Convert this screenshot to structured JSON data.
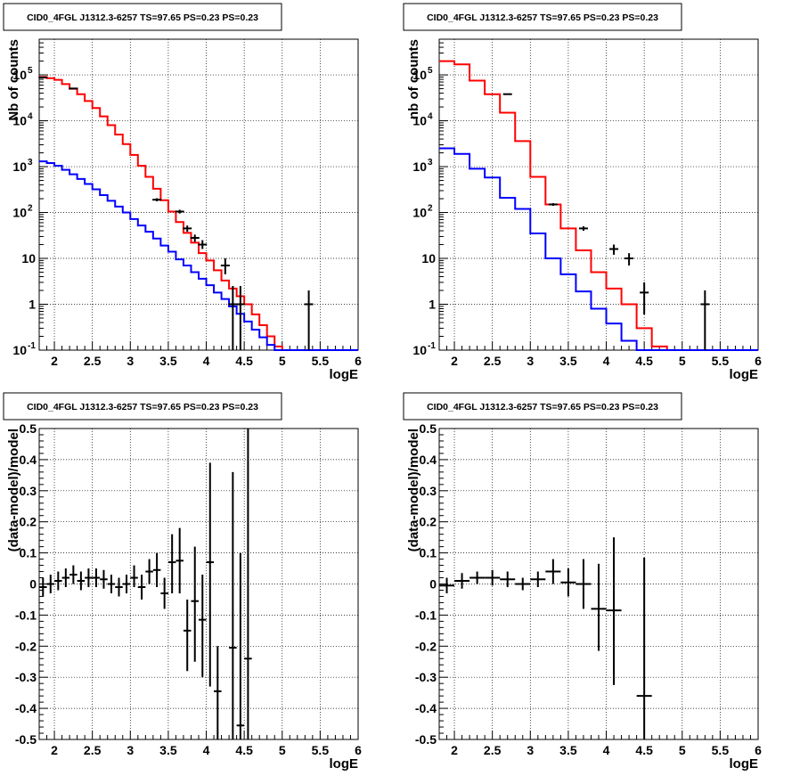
{
  "colors": {
    "data": "#000000",
    "model_total": "#ff0000",
    "model_component": "#0000ff",
    "grid": "#000000",
    "frame": "#000000"
  },
  "chart_data": [
    {
      "type": "line",
      "title": "CID0_4FGL J1312.3-6257 TS=97.65 PS=0.23 PS=0.23",
      "xlabel": "logE",
      "ylabel": "Nb of counts",
      "xlim": [
        1.8,
        6
      ],
      "ylim": [
        0.1,
        600000
      ],
      "log_y": true,
      "grid": true,
      "x_ticks": [
        "2",
        "2.5",
        "3",
        "3.5",
        "4",
        "4.5",
        "5",
        "5.5",
        "6"
      ],
      "y_ticks": [
        {
          "value": 0.1,
          "label": "10",
          "exp": "-1"
        },
        {
          "value": 1,
          "label": "1",
          "exp": ""
        },
        {
          "value": 10,
          "label": "10",
          "exp": ""
        },
        {
          "value": 100,
          "label": "10",
          "exp": "2"
        },
        {
          "value": 1000,
          "label": "10",
          "exp": "3"
        },
        {
          "value": 10000,
          "label": "10",
          "exp": "4"
        },
        {
          "value": 100000,
          "label": "10",
          "exp": "5"
        }
      ],
      "bin_edges": [
        1.8,
        1.9,
        2.0,
        2.1,
        2.2,
        2.3,
        2.4,
        2.5,
        2.6,
        2.7,
        2.8,
        2.9,
        3.0,
        3.1,
        3.2,
        3.3,
        3.4,
        3.5,
        3.6,
        3.7,
        3.8,
        3.9,
        4.0,
        4.1,
        4.2,
        4.3,
        4.4,
        4.5,
        4.6,
        4.7,
        4.8,
        4.9,
        5.0,
        5.1,
        5.2,
        5.3,
        5.4,
        5.5,
        5.6,
        5.7,
        5.8,
        5.9,
        6.0
      ],
      "series": [
        {
          "role": "model_total",
          "values": [
            90000,
            85000,
            78000,
            63000,
            50000,
            38000,
            27000,
            19000,
            12500,
            8000,
            5000,
            3100,
            1800,
            1050,
            600,
            330,
            185,
            105,
            62,
            36,
            22,
            13,
            9,
            5.5,
            3.3,
            2.2,
            1.5,
            1.0,
            0.6,
            0.35,
            0.2,
            0.12,
            0.1,
            0.1,
            0.1,
            0.1,
            0.1,
            0.1,
            0.1,
            0.1,
            0.1,
            0.1
          ]
        },
        {
          "role": "model_component",
          "values": [
            1300,
            1200,
            1050,
            850,
            680,
            540,
            420,
            320,
            240,
            180,
            135,
            100,
            72,
            52,
            38,
            27,
            19,
            14,
            9.5,
            7,
            5,
            3.6,
            2.6,
            1.8,
            1.3,
            0.9,
            0.62,
            0.42,
            0.28,
            0.19,
            0.13,
            0.1,
            0.1,
            0.1,
            0.1,
            0.1,
            0.1,
            0.1,
            0.1,
            0.1,
            0.1,
            0.1
          ]
        },
        {
          "role": "data",
          "points": [
            {
              "x": 1.85,
              "y": 88000,
              "lo": 87000,
              "hi": 89000
            },
            {
              "x": 2.25,
              "y": 50500,
              "lo": 50000,
              "hi": 51000
            },
            {
              "x": 3.35,
              "y": 190,
              "lo": 175,
              "hi": 205
            },
            {
              "x": 3.65,
              "y": 105,
              "lo": 95,
              "hi": 115
            },
            {
              "x": 3.75,
              "y": 45,
              "lo": 38,
              "hi": 52
            },
            {
              "x": 3.85,
              "y": 28,
              "lo": 23,
              "hi": 33
            },
            {
              "x": 3.95,
              "y": 20,
              "lo": 16,
              "hi": 25
            },
            {
              "x": 4.25,
              "y": 7,
              "lo": 4.5,
              "hi": 10
            },
            {
              "x": 4.35,
              "y": 1,
              "lo": 0.1,
              "hi": 2.5
            },
            {
              "x": 4.45,
              "y": 1,
              "lo": 0.1,
              "hi": 2.5
            },
            {
              "x": 5.35,
              "y": 1,
              "lo": 0.1,
              "hi": 2
            }
          ]
        }
      ]
    },
    {
      "type": "line",
      "title": "CID0_4FGL J1312.3-6257 TS=97.65 PS=0.23 PS=0.23",
      "xlabel": "logE",
      "ylabel": "nb of counts",
      "xlim": [
        1.8,
        6
      ],
      "ylim": [
        0.1,
        600000
      ],
      "log_y": true,
      "grid": true,
      "x_ticks": [
        "2",
        "2.5",
        "3",
        "3.5",
        "4",
        "4.5",
        "5",
        "5.5",
        "6"
      ],
      "y_ticks": [
        {
          "value": 0.1,
          "label": "10",
          "exp": "-1"
        },
        {
          "value": 1,
          "label": "1",
          "exp": ""
        },
        {
          "value": 10,
          "label": "10",
          "exp": ""
        },
        {
          "value": 100,
          "label": "10",
          "exp": "2"
        },
        {
          "value": 1000,
          "label": "10",
          "exp": "3"
        },
        {
          "value": 10000,
          "label": "10",
          "exp": "4"
        },
        {
          "value": 100000,
          "label": "10",
          "exp": "5"
        }
      ],
      "bin_edges": [
        1.8,
        2.0,
        2.2,
        2.4,
        2.6,
        2.8,
        3.0,
        3.2,
        3.4,
        3.6,
        3.8,
        4.0,
        4.2,
        4.4,
        4.6,
        4.8,
        5.0,
        5.2,
        5.4,
        5.6,
        5.8,
        6.0
      ],
      "series": [
        {
          "role": "model_total",
          "values": [
            200000,
            170000,
            75000,
            38000,
            15000,
            3600,
            600,
            150,
            45,
            15,
            5,
            2.2,
            1.0,
            0.3,
            0.12,
            0.1,
            0.1,
            0.1,
            0.1,
            0.1,
            0.1
          ]
        },
        {
          "role": "model_component",
          "values": [
            2500,
            1900,
            900,
            580,
            210,
            120,
            35,
            10,
            4.5,
            1.9,
            0.8,
            0.38,
            0.16,
            0.1,
            0.1,
            0.1,
            0.1,
            0.1,
            0.1,
            0.1,
            0.1
          ]
        },
        {
          "role": "data",
          "points": [
            {
              "x": 2.7,
              "y": 38000,
              "lo": 37000,
              "hi": 39000
            },
            {
              "x": 3.3,
              "y": 150,
              "lo": 140,
              "hi": 160
            },
            {
              "x": 3.7,
              "y": 45,
              "lo": 40,
              "hi": 50
            },
            {
              "x": 4.1,
              "y": 16,
              "lo": 12,
              "hi": 20
            },
            {
              "x": 4.3,
              "y": 10,
              "lo": 7,
              "hi": 13
            },
            {
              "x": 4.5,
              "y": 1.8,
              "lo": 0.6,
              "hi": 3
            },
            {
              "x": 5.3,
              "y": 1,
              "lo": 0.1,
              "hi": 2
            }
          ]
        }
      ]
    },
    {
      "type": "scatter",
      "title": "CID0_4FGL J1312.3-6257 TS=97.65 PS=0.23 PS=0.23",
      "xlabel": "logE",
      "ylabel": "(data-model)/model",
      "xlim": [
        1.8,
        6
      ],
      "ylim": [
        -0.5,
        0.5
      ],
      "grid": true,
      "x_ticks": [
        "2",
        "2.5",
        "3",
        "3.5",
        "4",
        "4.5",
        "5",
        "5.5",
        "6"
      ],
      "y_ticks": [
        "-0.5",
        "-0.4",
        "-0.3",
        "-0.2",
        "-0.1",
        "0",
        "0.1",
        "0.2",
        "0.3",
        "0.4",
        "0.5"
      ],
      "points": [
        {
          "x": 1.85,
          "y": -0.01,
          "ex": 0.05,
          "lo": -0.04,
          "hi": 0.02
        },
        {
          "x": 1.95,
          "y": 0.0,
          "ex": 0.05,
          "lo": -0.03,
          "hi": 0.03
        },
        {
          "x": 2.05,
          "y": 0.01,
          "ex": 0.05,
          "lo": -0.02,
          "hi": 0.04
        },
        {
          "x": 2.15,
          "y": 0.02,
          "ex": 0.05,
          "lo": -0.01,
          "hi": 0.05
        },
        {
          "x": 2.25,
          "y": 0.03,
          "ex": 0.05,
          "lo": 0.0,
          "hi": 0.06
        },
        {
          "x": 2.35,
          "y": 0.01,
          "ex": 0.05,
          "lo": -0.02,
          "hi": 0.04
        },
        {
          "x": 2.45,
          "y": 0.02,
          "ex": 0.05,
          "lo": -0.01,
          "hi": 0.05
        },
        {
          "x": 2.55,
          "y": 0.02,
          "ex": 0.05,
          "lo": -0.01,
          "hi": 0.05
        },
        {
          "x": 2.65,
          "y": 0.015,
          "ex": 0.05,
          "lo": -0.015,
          "hi": 0.045
        },
        {
          "x": 2.75,
          "y": 0.0,
          "ex": 0.05,
          "lo": -0.03,
          "hi": 0.03
        },
        {
          "x": 2.85,
          "y": -0.01,
          "ex": 0.05,
          "lo": -0.04,
          "hi": 0.02
        },
        {
          "x": 2.95,
          "y": 0.0,
          "ex": 0.05,
          "lo": -0.03,
          "hi": 0.03
        },
        {
          "x": 3.05,
          "y": 0.02,
          "ex": 0.05,
          "lo": -0.01,
          "hi": 0.06
        },
        {
          "x": 3.15,
          "y": -0.01,
          "ex": 0.05,
          "lo": -0.05,
          "hi": 0.03
        },
        {
          "x": 3.25,
          "y": 0.04,
          "ex": 0.05,
          "lo": 0.0,
          "hi": 0.08
        },
        {
          "x": 3.35,
          "y": 0.045,
          "ex": 0.05,
          "lo": -0.01,
          "hi": 0.1
        },
        {
          "x": 3.45,
          "y": -0.03,
          "ex": 0.05,
          "lo": -0.08,
          "hi": 0.02
        },
        {
          "x": 3.55,
          "y": 0.07,
          "ex": 0.05,
          "lo": -0.03,
          "hi": 0.16
        },
        {
          "x": 3.65,
          "y": 0.075,
          "ex": 0.05,
          "lo": -0.03,
          "hi": 0.18
        },
        {
          "x": 3.75,
          "y": -0.15,
          "ex": 0.05,
          "lo": -0.28,
          "hi": -0.05
        },
        {
          "x": 3.85,
          "y": -0.055,
          "ex": 0.05,
          "lo": -0.25,
          "hi": 0.12
        },
        {
          "x": 3.95,
          "y": -0.115,
          "ex": 0.05,
          "lo": -0.3,
          "hi": 0.03
        },
        {
          "x": 4.05,
          "y": 0.07,
          "ex": 0.05,
          "lo": -0.33,
          "hi": 0.39
        },
        {
          "x": 4.15,
          "y": -0.345,
          "ex": 0.05,
          "lo": -0.5,
          "hi": -0.2
        },
        {
          "x": 4.35,
          "y": -0.205,
          "ex": 0.05,
          "lo": -0.5,
          "hi": 0.36
        },
        {
          "x": 4.45,
          "y": -0.455,
          "ex": 0.05,
          "lo": -0.5,
          "hi": 0.1
        },
        {
          "x": 4.55,
          "y": -0.24,
          "ex": 0.05,
          "lo": -0.5,
          "hi": 0.5
        }
      ]
    },
    {
      "type": "scatter",
      "title": "CID0_4FGL J1312.3-6257 TS=97.65 PS=0.23 PS=0.23",
      "xlabel": "logE",
      "ylabel": "(data-model)/model",
      "xlim": [
        1.8,
        6
      ],
      "ylim": [
        -0.5,
        0.5
      ],
      "grid": true,
      "x_ticks": [
        "2",
        "2.5",
        "3",
        "3.5",
        "4",
        "4.5",
        "5",
        "5.5",
        "6"
      ],
      "y_ticks": [
        "-0.5",
        "-0.4",
        "-0.3",
        "-0.2",
        "-0.1",
        "0",
        "0.1",
        "0.2",
        "0.3",
        "0.4",
        "0.5"
      ],
      "points": [
        {
          "x": 1.9,
          "y": -0.005,
          "ex": 0.1,
          "lo": -0.03,
          "hi": 0.02
        },
        {
          "x": 2.1,
          "y": 0.01,
          "ex": 0.1,
          "lo": -0.015,
          "hi": 0.035
        },
        {
          "x": 2.3,
          "y": 0.02,
          "ex": 0.1,
          "lo": 0.0,
          "hi": 0.04
        },
        {
          "x": 2.5,
          "y": 0.02,
          "ex": 0.1,
          "lo": -0.005,
          "hi": 0.045
        },
        {
          "x": 2.7,
          "y": 0.015,
          "ex": 0.1,
          "lo": -0.01,
          "hi": 0.04
        },
        {
          "x": 2.9,
          "y": 0.0,
          "ex": 0.1,
          "lo": -0.02,
          "hi": 0.02
        },
        {
          "x": 3.1,
          "y": 0.015,
          "ex": 0.1,
          "lo": -0.01,
          "hi": 0.04
        },
        {
          "x": 3.3,
          "y": 0.04,
          "ex": 0.1,
          "lo": 0.0,
          "hi": 0.08
        },
        {
          "x": 3.5,
          "y": 0.005,
          "ex": 0.1,
          "lo": -0.04,
          "hi": 0.05
        },
        {
          "x": 3.7,
          "y": 0.0,
          "ex": 0.1,
          "lo": -0.08,
          "hi": 0.08
        },
        {
          "x": 3.9,
          "y": -0.08,
          "ex": 0.1,
          "lo": -0.215,
          "hi": 0.065
        },
        {
          "x": 4.1,
          "y": -0.085,
          "ex": 0.1,
          "lo": -0.325,
          "hi": 0.15
        },
        {
          "x": 4.5,
          "y": -0.36,
          "ex": 0.1,
          "lo": -0.5,
          "hi": 0.085
        }
      ]
    }
  ]
}
